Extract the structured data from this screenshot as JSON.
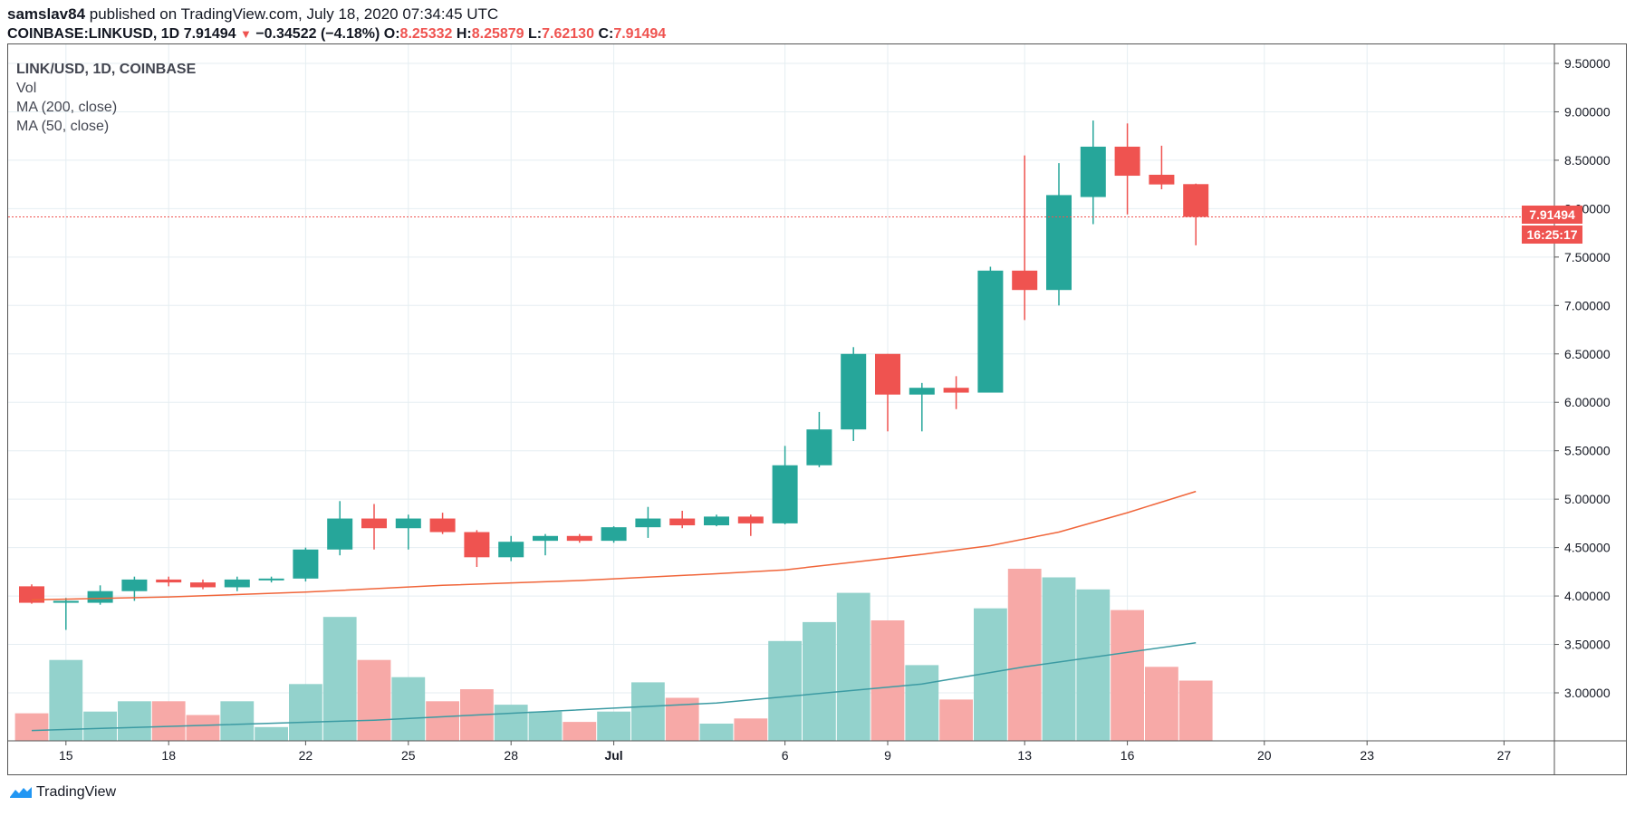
{
  "header": {
    "author": "samslav84",
    "published_text": "published on TradingView.com, July 18, 2020 07:34:45 UTC",
    "symbol": "COINBASE:LINKUSD, 1D",
    "last": "7.91494",
    "change": "−0.34522 (−4.18%)",
    "o_label": "O:",
    "o_value": "8.25332",
    "h_label": "H:",
    "h_value": "8.25879",
    "l_label": "L:",
    "l_value": "7.62130",
    "c_label": "C:",
    "c_value": "7.91494"
  },
  "legend": {
    "symbol": "LINK/USD, 1D, COINBASE",
    "vol": "Vol",
    "ma200": "MA (200, close)",
    "ma50": "MA (50, close)"
  },
  "price_label": "7.91494",
  "countdown_label": "16:25:17",
  "brand": "TradingView",
  "colors": {
    "up": "#26a69a",
    "down": "#ef5350",
    "vol_up": "#93d2cc",
    "vol_down": "#f7a9a7",
    "ma_price": "#f0653a",
    "ma_vol": "#3c9ba3",
    "grid": "#e5eef2"
  },
  "chart_data": {
    "type": "candlestick",
    "title": "LINK/USD, 1D, COINBASE",
    "ylim": [
      2.5,
      9.75
    ],
    "y_ticks": [
      "3.00000",
      "3.50000",
      "4.00000",
      "4.50000",
      "5.00000",
      "5.50000",
      "6.00000",
      "6.50000",
      "7.00000",
      "7.50000",
      "8.00000",
      "8.50000",
      "9.00000",
      "9.50000"
    ],
    "x_ticks": [
      {
        "label": "15",
        "day": 1
      },
      {
        "label": "18",
        "day": 4
      },
      {
        "label": "22",
        "day": 8
      },
      {
        "label": "25",
        "day": 11
      },
      {
        "label": "28",
        "day": 14
      },
      {
        "label": "Jul",
        "day": 17
      },
      {
        "label": "6",
        "day": 22
      },
      {
        "label": "9",
        "day": 25
      },
      {
        "label": "13",
        "day": 29
      },
      {
        "label": "16",
        "day": 32
      },
      {
        "label": "20",
        "day": 36
      },
      {
        "label": "23",
        "day": 39
      },
      {
        "label": "27",
        "day": 43
      }
    ],
    "candles": [
      {
        "date": "Jun 14",
        "o": 4.1,
        "h": 4.12,
        "l": 3.92,
        "c": 3.93
      },
      {
        "date": "Jun 15",
        "o": 3.93,
        "h": 3.98,
        "l": 3.65,
        "c": 3.95
      },
      {
        "date": "Jun 16",
        "o": 3.93,
        "h": 4.11,
        "l": 3.91,
        "c": 4.05
      },
      {
        "date": "Jun 17",
        "o": 4.05,
        "h": 4.2,
        "l": 3.95,
        "c": 4.17
      },
      {
        "date": "Jun 18",
        "o": 4.17,
        "h": 4.2,
        "l": 4.1,
        "c": 4.14
      },
      {
        "date": "Jun 19",
        "o": 4.14,
        "h": 4.17,
        "l": 4.07,
        "c": 4.09
      },
      {
        "date": "Jun 20",
        "o": 4.09,
        "h": 4.2,
        "l": 4.05,
        "c": 4.17
      },
      {
        "date": "Jun 21",
        "o": 4.17,
        "h": 4.2,
        "l": 4.14,
        "c": 4.18
      },
      {
        "date": "Jun 22",
        "o": 4.18,
        "h": 4.5,
        "l": 4.15,
        "c": 4.48
      },
      {
        "date": "Jun 23",
        "o": 4.48,
        "h": 4.98,
        "l": 4.42,
        "c": 4.8
      },
      {
        "date": "Jun 24",
        "o": 4.8,
        "h": 4.95,
        "l": 4.48,
        "c": 4.7
      },
      {
        "date": "Jun 25",
        "o": 4.7,
        "h": 4.84,
        "l": 4.48,
        "c": 4.8
      },
      {
        "date": "Jun 26",
        "o": 4.8,
        "h": 4.86,
        "l": 4.64,
        "c": 4.66
      },
      {
        "date": "Jun 27",
        "o": 4.66,
        "h": 4.68,
        "l": 4.3,
        "c": 4.4
      },
      {
        "date": "Jun 28",
        "o": 4.4,
        "h": 4.62,
        "l": 4.36,
        "c": 4.56
      },
      {
        "date": "Jun 29",
        "o": 4.57,
        "h": 4.64,
        "l": 4.42,
        "c": 4.62
      },
      {
        "date": "Jun 30",
        "o": 4.62,
        "h": 4.64,
        "l": 4.55,
        "c": 4.57
      },
      {
        "date": "Jul 1",
        "o": 4.57,
        "h": 4.72,
        "l": 4.55,
        "c": 4.71
      },
      {
        "date": "Jul 2",
        "o": 4.71,
        "h": 4.92,
        "l": 4.6,
        "c": 4.8
      },
      {
        "date": "Jul 3",
        "o": 4.8,
        "h": 4.88,
        "l": 4.7,
        "c": 4.73
      },
      {
        "date": "Jul 4",
        "o": 4.73,
        "h": 4.84,
        "l": 4.72,
        "c": 4.82
      },
      {
        "date": "Jul 5",
        "o": 4.82,
        "h": 4.84,
        "l": 4.62,
        "c": 4.75
      },
      {
        "date": "Jul 6",
        "o": 4.75,
        "h": 5.55,
        "l": 4.74,
        "c": 5.35
      },
      {
        "date": "Jul 7",
        "o": 5.35,
        "h": 5.9,
        "l": 5.33,
        "c": 5.72
      },
      {
        "date": "Jul 8",
        "o": 5.72,
        "h": 6.57,
        "l": 5.6,
        "c": 6.5
      },
      {
        "date": "Jul 9",
        "o": 6.5,
        "h": 6.5,
        "l": 5.7,
        "c": 6.08
      },
      {
        "date": "Jul 10",
        "o": 6.08,
        "h": 6.2,
        "l": 5.7,
        "c": 6.15
      },
      {
        "date": "Jul 11",
        "o": 6.15,
        "h": 6.27,
        "l": 5.93,
        "c": 6.1
      },
      {
        "date": "Jul 12",
        "o": 6.1,
        "h": 7.4,
        "l": 6.1,
        "c": 7.36
      },
      {
        "date": "Jul 13",
        "o": 7.36,
        "h": 8.55,
        "l": 6.85,
        "c": 7.16
      },
      {
        "date": "Jul 14",
        "o": 7.16,
        "h": 8.47,
        "l": 7.0,
        "c": 8.14
      },
      {
        "date": "Jul 15",
        "o": 8.12,
        "h": 8.91,
        "l": 7.84,
        "c": 8.64
      },
      {
        "date": "Jul 16",
        "o": 8.64,
        "h": 8.88,
        "l": 7.94,
        "c": 8.34
      },
      {
        "date": "Jul 17",
        "o": 8.35,
        "h": 8.65,
        "l": 8.2,
        "c": 8.25
      },
      {
        "date": "Jul 18",
        "o": 8.25332,
        "h": 8.25879,
        "l": 7.6213,
        "c": 7.91494
      }
    ],
    "volume_relative": [
      0.16,
      0.47,
      0.17,
      0.23,
      0.23,
      0.15,
      0.23,
      0.08,
      0.33,
      0.72,
      0.47,
      0.37,
      0.23,
      0.3,
      0.21,
      0.17,
      0.11,
      0.17,
      0.34,
      0.25,
      0.1,
      0.13,
      0.58,
      0.69,
      0.86,
      0.7,
      0.44,
      0.24,
      0.77,
      1.0,
      0.95,
      0.88,
      0.76,
      0.43,
      0.35
    ],
    "ma50_price": [
      [
        0,
        3.96
      ],
      [
        4,
        3.99
      ],
      [
        8,
        4.04
      ],
      [
        12,
        4.11
      ],
      [
        16,
        4.16
      ],
      [
        20,
        4.23
      ],
      [
        22,
        4.27
      ],
      [
        24,
        4.35
      ],
      [
        26,
        4.43
      ],
      [
        28,
        4.52
      ],
      [
        30,
        4.66
      ],
      [
        32,
        4.86
      ],
      [
        34,
        5.08
      ]
    ],
    "ma200_volume_relative": [
      [
        0,
        0.06
      ],
      [
        10,
        0.12
      ],
      [
        20,
        0.22
      ],
      [
        26,
        0.33
      ],
      [
        29,
        0.43
      ],
      [
        34,
        0.57
      ]
    ],
    "last_price": 7.91494
  }
}
